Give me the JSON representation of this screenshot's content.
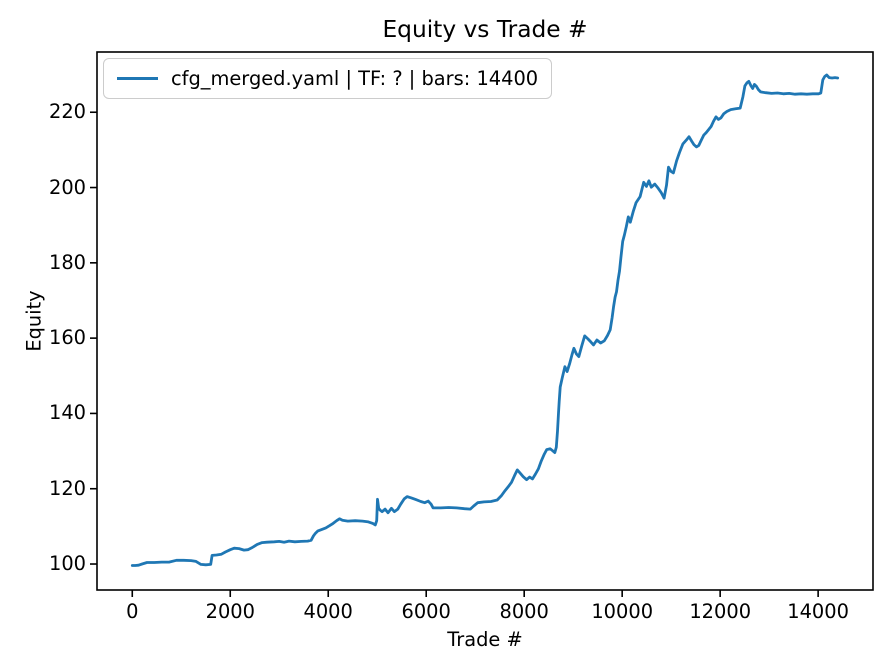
{
  "chart_data": {
    "type": "line",
    "title": "Equity vs Trade #",
    "xlabel": "Trade #",
    "ylabel": "Equity",
    "xlim": [
      -720,
      15120
    ],
    "ylim": [
      93.1,
      236.0
    ],
    "x_ticks": [
      0,
      2000,
      4000,
      6000,
      8000,
      10000,
      12000,
      14000
    ],
    "y_ticks": [
      100,
      120,
      140,
      160,
      180,
      200,
      220
    ],
    "grid": false,
    "legend_position": "upper left",
    "series": [
      {
        "name": "cfg_merged.yaml | TF: ? | bars: 14400",
        "color": "#1f77b4",
        "points": [
          [
            1,
            99.6
          ],
          [
            60,
            99.6
          ],
          [
            130,
            99.7
          ],
          [
            200,
            100.0
          ],
          [
            300,
            100.4
          ],
          [
            450,
            100.4
          ],
          [
            600,
            100.5
          ],
          [
            750,
            100.5
          ],
          [
            900,
            101.0
          ],
          [
            1050,
            101.0
          ],
          [
            1200,
            100.9
          ],
          [
            1300,
            100.7
          ],
          [
            1400,
            99.9
          ],
          [
            1500,
            99.8
          ],
          [
            1600,
            99.9
          ],
          [
            1630,
            102.3
          ],
          [
            1720,
            102.4
          ],
          [
            1820,
            102.6
          ],
          [
            1900,
            103.2
          ],
          [
            2000,
            103.8
          ],
          [
            2080,
            104.2
          ],
          [
            2180,
            104.1
          ],
          [
            2280,
            103.7
          ],
          [
            2360,
            103.8
          ],
          [
            2450,
            104.4
          ],
          [
            2550,
            105.2
          ],
          [
            2650,
            105.7
          ],
          [
            2750,
            105.8
          ],
          [
            2900,
            105.9
          ],
          [
            3000,
            106.0
          ],
          [
            3100,
            105.8
          ],
          [
            3200,
            106.1
          ],
          [
            3320,
            105.9
          ],
          [
            3450,
            106.0
          ],
          [
            3580,
            106.1
          ],
          [
            3650,
            106.3
          ],
          [
            3700,
            107.5
          ],
          [
            3740,
            108.2
          ],
          [
            3790,
            108.8
          ],
          [
            3870,
            109.2
          ],
          [
            3950,
            109.6
          ],
          [
            4030,
            110.2
          ],
          [
            4100,
            110.8
          ],
          [
            4170,
            111.5
          ],
          [
            4230,
            112.0
          ],
          [
            4290,
            111.6
          ],
          [
            4400,
            111.4
          ],
          [
            4550,
            111.5
          ],
          [
            4700,
            111.4
          ],
          [
            4820,
            111.2
          ],
          [
            4910,
            110.8
          ],
          [
            4960,
            110.4
          ],
          [
            4990,
            111.5
          ],
          [
            5005,
            117.2
          ],
          [
            5030,
            114.8
          ],
          [
            5060,
            114.3
          ],
          [
            5100,
            113.9
          ],
          [
            5160,
            114.6
          ],
          [
            5220,
            113.6
          ],
          [
            5290,
            114.8
          ],
          [
            5350,
            113.9
          ],
          [
            5420,
            114.6
          ],
          [
            5480,
            115.9
          ],
          [
            5550,
            117.3
          ],
          [
            5610,
            117.9
          ],
          [
            5690,
            117.6
          ],
          [
            5790,
            117.1
          ],
          [
            5890,
            116.6
          ],
          [
            5970,
            116.3
          ],
          [
            6040,
            116.7
          ],
          [
            6100,
            115.9
          ],
          [
            6140,
            114.9
          ],
          [
            6300,
            114.9
          ],
          [
            6460,
            115.0
          ],
          [
            6620,
            114.9
          ],
          [
            6780,
            114.7
          ],
          [
            6900,
            114.6
          ],
          [
            6970,
            115.4
          ],
          [
            7050,
            116.3
          ],
          [
            7180,
            116.5
          ],
          [
            7320,
            116.6
          ],
          [
            7450,
            117.0
          ],
          [
            7530,
            118.1
          ],
          [
            7610,
            119.5
          ],
          [
            7690,
            120.8
          ],
          [
            7740,
            121.7
          ],
          [
            7800,
            123.4
          ],
          [
            7860,
            125.0
          ],
          [
            7920,
            124.1
          ],
          [
            7980,
            123.2
          ],
          [
            8050,
            122.4
          ],
          [
            8110,
            123.1
          ],
          [
            8170,
            122.6
          ],
          [
            8230,
            123.9
          ],
          [
            8290,
            125.3
          ],
          [
            8350,
            127.4
          ],
          [
            8410,
            129.2
          ],
          [
            8460,
            130.4
          ],
          [
            8530,
            130.6
          ],
          [
            8580,
            130.1
          ],
          [
            8625,
            129.6
          ],
          [
            8655,
            131.0
          ],
          [
            8680,
            135.3
          ],
          [
            8700,
            140.1
          ],
          [
            8715,
            143.2
          ],
          [
            8735,
            147.0
          ],
          [
            8775,
            149.4
          ],
          [
            8830,
            152.4
          ],
          [
            8875,
            151.1
          ],
          [
            8925,
            153.1
          ],
          [
            8975,
            155.6
          ],
          [
            9015,
            157.3
          ],
          [
            9065,
            155.8
          ],
          [
            9115,
            155.1
          ],
          [
            9175,
            158.0
          ],
          [
            9235,
            160.6
          ],
          [
            9300,
            159.8
          ],
          [
            9360,
            159.0
          ],
          [
            9415,
            158.2
          ],
          [
            9485,
            159.5
          ],
          [
            9560,
            158.7
          ],
          [
            9635,
            159.3
          ],
          [
            9700,
            160.7
          ],
          [
            9755,
            162.2
          ],
          [
            9795,
            165.4
          ],
          [
            9825,
            168.4
          ],
          [
            9855,
            170.9
          ],
          [
            9885,
            172.3
          ],
          [
            9915,
            175.4
          ],
          [
            9945,
            177.8
          ],
          [
            9975,
            181.4
          ],
          [
            10010,
            185.7
          ],
          [
            10045,
            187.4
          ],
          [
            10085,
            189.6
          ],
          [
            10125,
            192.2
          ],
          [
            10165,
            190.8
          ],
          [
            10225,
            193.6
          ],
          [
            10285,
            196.0
          ],
          [
            10365,
            197.6
          ],
          [
            10440,
            201.4
          ],
          [
            10495,
            200.3
          ],
          [
            10545,
            201.8
          ],
          [
            10595,
            200.1
          ],
          [
            10665,
            200.9
          ],
          [
            10735,
            199.8
          ],
          [
            10795,
            198.7
          ],
          [
            10855,
            197.2
          ],
          [
            10905,
            200.6
          ],
          [
            10945,
            205.4
          ],
          [
            10995,
            204.3
          ],
          [
            11045,
            203.9
          ],
          [
            11110,
            207.1
          ],
          [
            11170,
            209.3
          ],
          [
            11240,
            211.6
          ],
          [
            11310,
            212.6
          ],
          [
            11365,
            213.5
          ],
          [
            11415,
            212.4
          ],
          [
            11465,
            211.4
          ],
          [
            11515,
            210.8
          ],
          [
            11565,
            211.2
          ],
          [
            11615,
            212.6
          ],
          [
            11665,
            213.9
          ],
          [
            11715,
            214.6
          ],
          [
            11765,
            215.4
          ],
          [
            11815,
            216.2
          ],
          [
            11865,
            217.6
          ],
          [
            11915,
            218.8
          ],
          [
            11965,
            218.1
          ],
          [
            12015,
            218.5
          ],
          [
            12075,
            219.6
          ],
          [
            12135,
            220.2
          ],
          [
            12215,
            220.7
          ],
          [
            12315,
            220.9
          ],
          [
            12410,
            221.1
          ],
          [
            12465,
            224.1
          ],
          [
            12505,
            227.0
          ],
          [
            12545,
            227.8
          ],
          [
            12585,
            228.2
          ],
          [
            12630,
            227.0
          ],
          [
            12665,
            226.3
          ],
          [
            12700,
            227.4
          ],
          [
            12740,
            226.9
          ],
          [
            12780,
            226.0
          ],
          [
            12825,
            225.4
          ],
          [
            12930,
            225.2
          ],
          [
            13050,
            225.0
          ],
          [
            13170,
            225.1
          ],
          [
            13290,
            224.9
          ],
          [
            13410,
            225.0
          ],
          [
            13530,
            224.8
          ],
          [
            13650,
            224.9
          ],
          [
            13770,
            224.8
          ],
          [
            13890,
            224.9
          ],
          [
            14010,
            224.9
          ],
          [
            14055,
            225.1
          ],
          [
            14095,
            228.6
          ],
          [
            14135,
            229.5
          ],
          [
            14175,
            229.9
          ],
          [
            14225,
            229.2
          ],
          [
            14285,
            229.1
          ],
          [
            14345,
            229.2
          ],
          [
            14400,
            229.1
          ]
        ]
      }
    ]
  }
}
